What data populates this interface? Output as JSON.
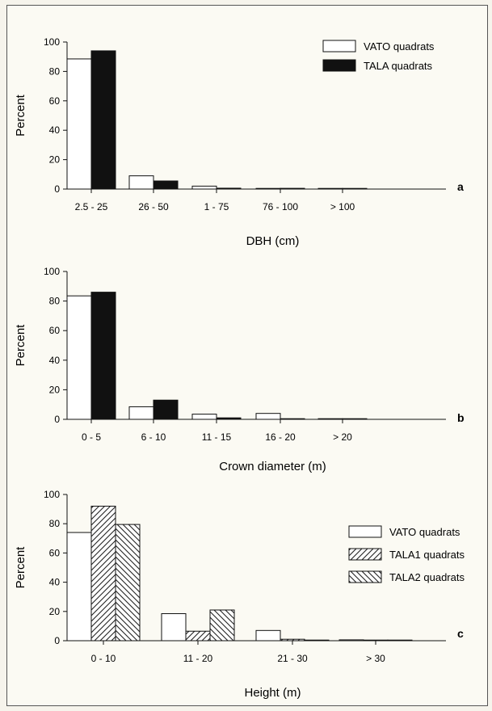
{
  "chart_data": [
    {
      "type": "bar",
      "panel_label": "a",
      "ylabel": "Percent",
      "xlabel": "DBH (cm)",
      "ylim": [
        0,
        100
      ],
      "yticks": [
        0,
        20,
        40,
        60,
        80,
        100
      ],
      "categories": [
        "2.5 - 25",
        "26 - 50",
        "1 - 75",
        "76 - 100",
        "> 100"
      ],
      "series": [
        {
          "name": "VATO quadrats",
          "pattern": "open",
          "values": [
            88.5,
            9,
            2,
            0.3,
            0
          ]
        },
        {
          "name": "TALA quadrats",
          "pattern": "solid",
          "values": [
            94,
            5.5,
            0.6,
            0.5,
            0
          ]
        }
      ],
      "legend": "top-right"
    },
    {
      "type": "bar",
      "panel_label": "b",
      "ylabel": "Percent",
      "xlabel": "Crown diameter (m)",
      "ylim": [
        0,
        100
      ],
      "yticks": [
        0,
        20,
        40,
        60,
        80,
        100
      ],
      "categories": [
        "0 - 5",
        "6 - 10",
        "11 - 15",
        "16 - 20",
        "> 20"
      ],
      "series": [
        {
          "name": "VATO quadrats",
          "pattern": "open",
          "values": [
            83.5,
            8.5,
            3.5,
            4,
            0
          ]
        },
        {
          "name": "TALA quadrats",
          "pattern": "solid",
          "values": [
            86,
            13,
            1,
            0,
            0
          ]
        }
      ]
    },
    {
      "type": "bar",
      "panel_label": "c",
      "ylabel": "Percent",
      "xlabel": "Height (m)",
      "ylim": [
        0,
        100
      ],
      "yticks": [
        0,
        20,
        40,
        60,
        80,
        100
      ],
      "categories": [
        "0 - 10",
        "11 - 20",
        "21 - 30",
        "> 30"
      ],
      "series": [
        {
          "name": "VATO quadrats",
          "pattern": "open",
          "values": [
            74,
            18.5,
            7,
            0.6
          ]
        },
        {
          "name": "TALA1 quadrats",
          "pattern": "hatch-right",
          "values": [
            92,
            6.5,
            1,
            0.3
          ]
        },
        {
          "name": "TALA2 quadrats",
          "pattern": "hatch-left",
          "values": [
            79.5,
            21,
            0,
            0
          ]
        }
      ],
      "legend": "right"
    }
  ]
}
